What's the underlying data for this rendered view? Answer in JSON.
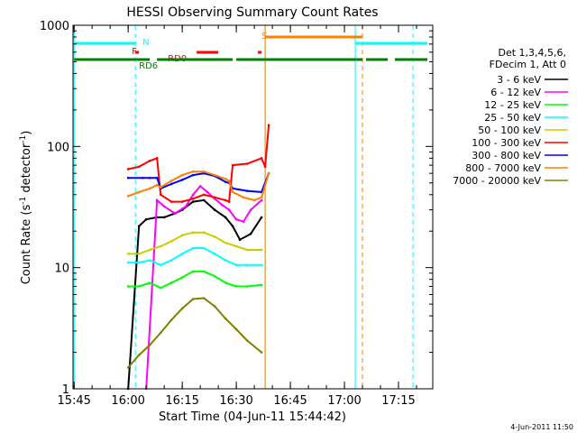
{
  "chart_data": {
    "type": "line",
    "title": "HESSI Observing Summary Count Rates",
    "xlabel": "Start Time (04-Jun-11 15:44:42)",
    "ylabel": "Count Rate (s⁻¹ detector⁻¹)",
    "ylog": true,
    "ylim": [
      1,
      1000
    ],
    "xlim": [
      "15:44:42",
      "17:24:30"
    ],
    "x_ticks": [
      "15:45",
      "16:00",
      "16:15",
      "16:30",
      "16:45",
      "17:00",
      "17:15"
    ],
    "y_ticks": [
      "1",
      "10",
      "100",
      "1000"
    ],
    "grid": false,
    "legend_position": "right",
    "legend_header": [
      "Det 1,3,4,5,6,",
      "FDecim 1, Att 0"
    ],
    "timestamp": "4-Jun-2011 11:50",
    "series": [
      {
        "name": "3 - 6 keV",
        "color": "#000000",
        "x": [
          "16:00",
          "16:03",
          "16:05",
          "16:08",
          "16:10",
          "16:13",
          "16:15",
          "16:18",
          "16:21",
          "16:24",
          "16:27",
          "16:29",
          "16:31",
          "16:34",
          "16:37"
        ],
        "y": [
          0,
          22,
          25,
          26,
          26,
          28,
          30,
          35,
          36,
          30,
          26,
          22,
          17,
          19,
          26
        ]
      },
      {
        "name": "6 - 12 keV",
        "color": "#ff00ff",
        "x": [
          "16:05",
          "16:08",
          "16:10",
          "16:13",
          "16:16",
          "16:18",
          "16:20",
          "16:22",
          "16:24",
          "16:26",
          "16:28",
          "16:30",
          "16:32",
          "16:34",
          "16:37"
        ],
        "y": [
          0,
          36,
          32,
          28,
          32,
          40,
          47,
          42,
          37,
          33,
          30,
          25,
          24,
          30,
          36
        ]
      },
      {
        "name": "12 - 25 keV",
        "color": "#00ff00",
        "x": [
          "16:00",
          "16:03",
          "16:06",
          "16:09",
          "16:12",
          "16:15",
          "16:18",
          "16:21",
          "16:24",
          "16:27",
          "16:30",
          "16:33",
          "16:37"
        ],
        "y": [
          7,
          7,
          7.5,
          6.8,
          7.5,
          8.3,
          9.3,
          9.3,
          8.5,
          7.5,
          7.0,
          7.0,
          7.2
        ]
      },
      {
        "name": "25 - 50 keV",
        "color": "#00ffff",
        "x": [
          "16:00",
          "16:03",
          "16:06",
          "16:09",
          "16:12",
          "16:15",
          "16:18",
          "16:21",
          "16:24",
          "16:27",
          "16:30",
          "16:33",
          "16:37"
        ],
        "y": [
          11,
          11,
          11.5,
          10.5,
          11.5,
          13,
          14.5,
          14.5,
          13,
          11.5,
          10.5,
          10.5,
          10.5
        ]
      },
      {
        "name": "50 - 100 keV",
        "color": "#cccc00",
        "x": [
          "16:00",
          "16:03",
          "16:06",
          "16:09",
          "16:12",
          "16:15",
          "16:18",
          "16:21",
          "16:24",
          "16:27",
          "16:30",
          "16:33",
          "16:37"
        ],
        "y": [
          13,
          13,
          14,
          15,
          16.5,
          18.5,
          19.5,
          19.5,
          18,
          16,
          15,
          14,
          14
        ]
      },
      {
        "name": "100 - 300 keV",
        "color": "#ff0000",
        "x": [
          "16:00",
          "16:03",
          "16:06",
          "16:08",
          "16:09",
          "16:12",
          "16:15",
          "16:18",
          "16:21",
          "16:24",
          "16:27",
          "16:28",
          "16:29",
          "16:33",
          "16:37",
          "16:38",
          "16:39"
        ],
        "y": [
          65,
          68,
          76,
          80,
          40,
          35,
          35,
          37,
          40,
          38,
          36,
          35,
          70,
          72,
          80,
          68,
          150
        ]
      },
      {
        "name": "300 - 800 keV",
        "color": "#0000ff",
        "x": [
          "16:00",
          "16:04",
          "16:06",
          "16:08",
          "16:09",
          "16:12",
          "16:15",
          "16:18",
          "16:21",
          "16:24",
          "16:27",
          "16:28",
          "16:29",
          "16:33",
          "16:37",
          "16:39"
        ],
        "y": [
          55,
          55,
          55,
          55,
          45,
          49,
          53,
          58,
          60,
          57,
          51,
          50,
          45,
          43,
          42,
          60
        ]
      },
      {
        "name": "800 - 7000 keV",
        "color": "#ff8000",
        "x": [
          "16:00",
          "16:03",
          "16:06",
          "16:08",
          "16:09",
          "16:12",
          "16:15",
          "16:18",
          "16:21",
          "16:24",
          "16:27",
          "16:28",
          "16:29",
          "16:32",
          "16:35",
          "16:37",
          "16:39"
        ],
        "y": [
          39,
          42,
          45,
          48,
          46,
          52,
          58,
          62,
          62,
          58,
          54,
          52,
          42,
          38,
          36,
          38,
          60
        ]
      },
      {
        "name": "7000 - 20000 keV",
        "color": "#808000",
        "x": [
          "16:00",
          "16:03",
          "16:06",
          "16:09",
          "16:12",
          "16:15",
          "16:18",
          "16:21",
          "16:24",
          "16:27",
          "16:30",
          "16:33",
          "16:37"
        ],
        "y": [
          1.5,
          1.9,
          2.3,
          2.9,
          3.7,
          4.6,
          5.5,
          5.6,
          4.8,
          3.8,
          3.1,
          2.5,
          2.0
        ]
      }
    ],
    "vertical_lines": [
      {
        "time": "15:45",
        "color": "#00ffff",
        "style": "solid"
      },
      {
        "time": "16:02",
        "color": "#00ffff",
        "style": "dashed"
      },
      {
        "time": "16:38",
        "color": "#d08000",
        "style": "solid"
      },
      {
        "time": "17:03",
        "color": "#00ffff",
        "style": "solid"
      },
      {
        "time": "17:05",
        "color": "#ff8000",
        "style": "dashed"
      },
      {
        "time": "17:19",
        "color": "#00ffff",
        "style": "dashed"
      }
    ],
    "flag_bars": [
      {
        "flag": "N",
        "color": "#00ffff",
        "label_at": "16:04",
        "segments": [
          [
            "15:45",
            "16:02"
          ],
          [
            "17:03",
            "17:23"
          ]
        ]
      },
      {
        "flag": "S",
        "color": "#ff8000",
        "label_at": "16:37",
        "segments": [
          [
            "16:38",
            "17:05"
          ]
        ]
      },
      {
        "flag": "F",
        "color": "#ff0000",
        "label_at": "16:01",
        "segments": [
          [
            "16:02",
            "16:03"
          ]
        ]
      },
      {
        "flag": "RD0",
        "color": "#ff0000",
        "label_at": "16:11",
        "segments": [
          [
            "16:19",
            "16:25"
          ],
          [
            "16:36",
            "16:37"
          ]
        ]
      },
      {
        "flag": "RD6",
        "color": "#008000",
        "label_at": "16:03",
        "segments": [
          [
            "15:45",
            "16:06"
          ],
          [
            "16:08",
            "16:29"
          ],
          [
            "16:30",
            "17:05"
          ],
          [
            "17:06",
            "17:12"
          ],
          [
            "17:14",
            "17:23"
          ]
        ]
      }
    ]
  }
}
